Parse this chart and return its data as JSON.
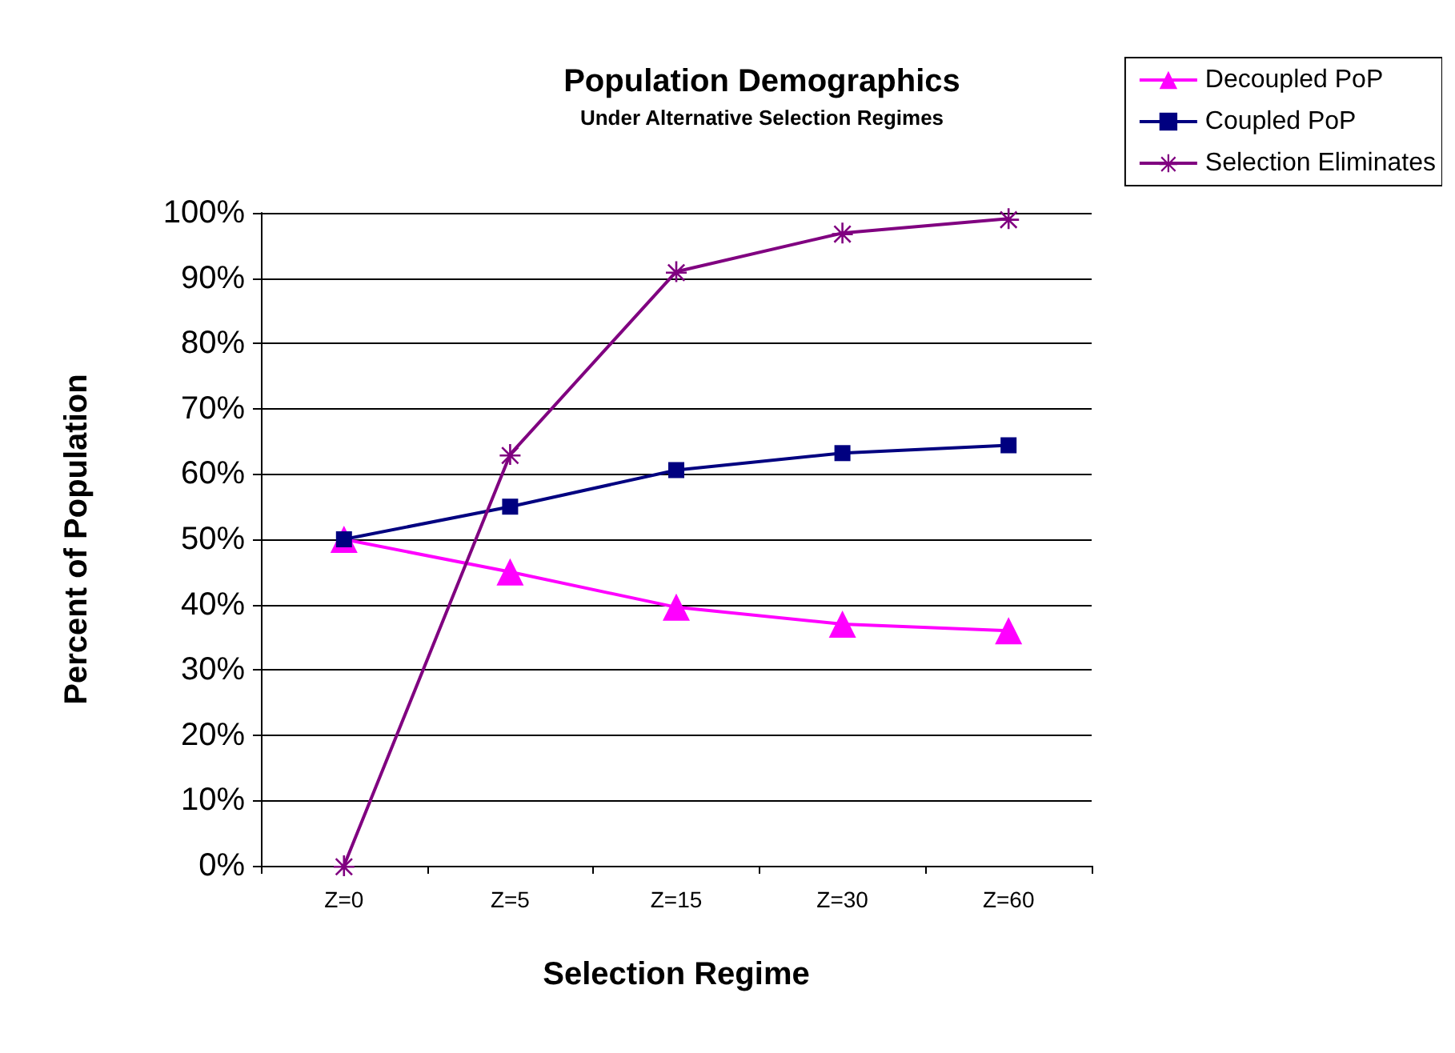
{
  "chart_data": {
    "type": "line",
    "title": "Population Demographics",
    "subtitle": "Under Alternative Selection Regimes",
    "xlabel": "Selection Regime",
    "ylabel": "Percent of Population",
    "categories": [
      "Z=0",
      "Z=5",
      "Z=15",
      "Z=30",
      "Z=60"
    ],
    "series": [
      {
        "name": "Decoupled PoP",
        "color": "#ff00ff",
        "marker": "triangle",
        "values": [
          50,
          45,
          39.6,
          37,
          36
        ]
      },
      {
        "name": "Coupled PoP",
        "color": "#000080",
        "marker": "square",
        "values": [
          50,
          55,
          60.6,
          63.2,
          64.4
        ]
      },
      {
        "name": "Selection Eliminates",
        "color": "#800080",
        "marker": "star",
        "values": [
          0,
          63,
          91,
          96.9,
          99.1
        ]
      }
    ],
    "ylim": [
      0,
      100
    ],
    "yticks": [
      {
        "value": 0,
        "label": "0%"
      },
      {
        "value": 10,
        "label": "10%"
      },
      {
        "value": 20,
        "label": "20%"
      },
      {
        "value": 30,
        "label": "30%"
      },
      {
        "value": 40,
        "label": "40%"
      },
      {
        "value": 50,
        "label": "50%"
      },
      {
        "value": 60,
        "label": "60%"
      },
      {
        "value": 70,
        "label": "70%"
      },
      {
        "value": 80,
        "label": "80%"
      },
      {
        "value": 90,
        "label": "90%"
      },
      {
        "value": 100,
        "label": "100%"
      }
    ],
    "grid": "y",
    "legend": "top right",
    "line_style": "solid"
  }
}
